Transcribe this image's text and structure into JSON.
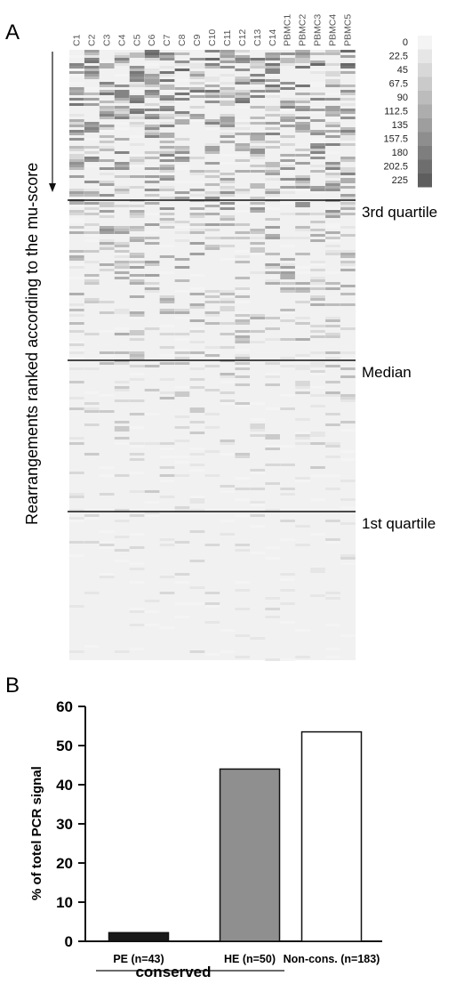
{
  "panel_a": {
    "label": "A",
    "y_axis_label": "Rearrangements ranked according to the mu-score",
    "columns": [
      "C1",
      "C2",
      "C3",
      "C4",
      "C5",
      "C6",
      "C7",
      "C8",
      "C9",
      "C10",
      "C11",
      "C12",
      "C13",
      "C14",
      "PBMC1",
      "PBMC2",
      "PBMC3",
      "PBMC4",
      "PBMC5"
    ],
    "colorscale": {
      "labels": [
        "0",
        "22.5",
        "45",
        "67.5",
        "90",
        "112.5",
        "135",
        "157.5",
        "180",
        "202.5",
        "225"
      ],
      "colors": [
        "#f4f4f4",
        "#e6e6e6",
        "#d8d8d8",
        "#cacaca",
        "#bcbcbc",
        "#adadad",
        "#9e9e9e",
        "#8e8e8e",
        "#7e7e7e",
        "#6e6e6e",
        "#5e5e5e"
      ]
    },
    "quartile_labels": [
      "3rd quartile",
      "Median",
      "1st quartile"
    ]
  },
  "chart_data": {
    "type": "bar",
    "panel_label": "B",
    "categories": [
      "PE (n=43)",
      "HE (n=50)",
      "Non-cons. (n=183)"
    ],
    "values": [
      2.2,
      44,
      53.5
    ],
    "bar_colors": [
      "#1a1a1a",
      "#8f8f8f",
      "#ffffff"
    ],
    "ylabel": "% of totel PCR signal",
    "ylim": [
      0,
      60
    ],
    "yticks": [
      0,
      10,
      20,
      30,
      40,
      50,
      60
    ],
    "group_label": "conserved"
  }
}
